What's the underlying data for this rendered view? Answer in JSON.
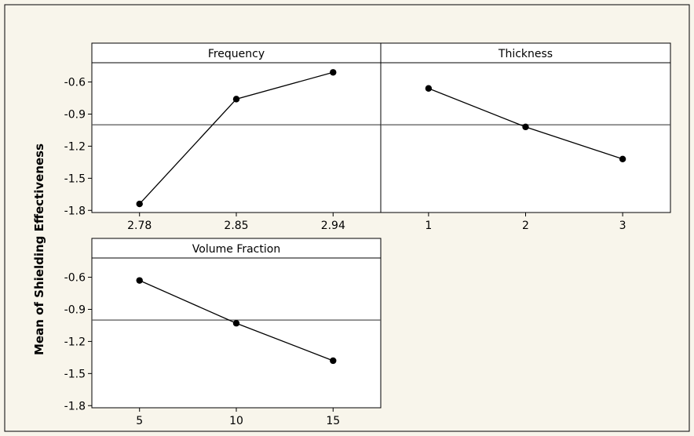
{
  "chart_data": {
    "type": "line",
    "ylabel": "Mean of Shielding Effectiveness",
    "ylim": [
      -1.82,
      -0.42
    ],
    "yticks": [
      -0.6,
      -0.9,
      -1.2,
      -1.5,
      -1.8
    ],
    "ytick_labels": [
      "-0.6",
      "-0.9",
      "-1.2",
      "-1.5",
      "-1.8"
    ],
    "reference_mean": -1.0,
    "colors": {
      "background": "#f8f5eb",
      "panel": "#ffffff",
      "line": "#000000",
      "reference": "#555555"
    },
    "panels": [
      {
        "title": "Frequency",
        "categories": [
          "2.78",
          "2.85",
          "2.94"
        ],
        "values": [
          -1.74,
          -0.76,
          -0.51
        ]
      },
      {
        "title": "Thickness",
        "categories": [
          "1",
          "2",
          "3"
        ],
        "values": [
          -0.66,
          -1.02,
          -1.32
        ]
      },
      {
        "title": "Volume Fraction",
        "categories": [
          "5",
          "10",
          "15"
        ],
        "values": [
          -0.63,
          -1.03,
          -1.38
        ]
      }
    ]
  }
}
